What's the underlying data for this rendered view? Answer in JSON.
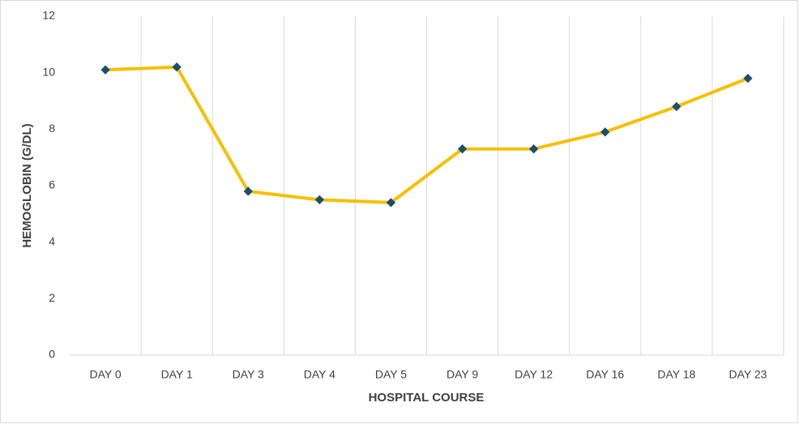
{
  "chart_data": {
    "type": "line",
    "x_label": "HOSPITAL COURSE",
    "y_label": "HEMOGLOBIN (G/DL)",
    "categories": [
      "DAY 0",
      "DAY 1",
      "DAY 3",
      "DAY 4",
      "DAY 5",
      "DAY 9",
      "DAY 12",
      "DAY 16",
      "DAY 18",
      "DAY 23"
    ],
    "values": [
      10.1,
      10.2,
      5.8,
      5.5,
      5.4,
      7.3,
      7.3,
      7.9,
      8.8,
      9.8
    ],
    "color": "#f5c000",
    "marker_color": "#1b4f6b",
    "ylim": [
      0,
      12
    ],
    "yticks": [
      0,
      2,
      4,
      6,
      8,
      10,
      12
    ],
    "grid": "x"
  }
}
